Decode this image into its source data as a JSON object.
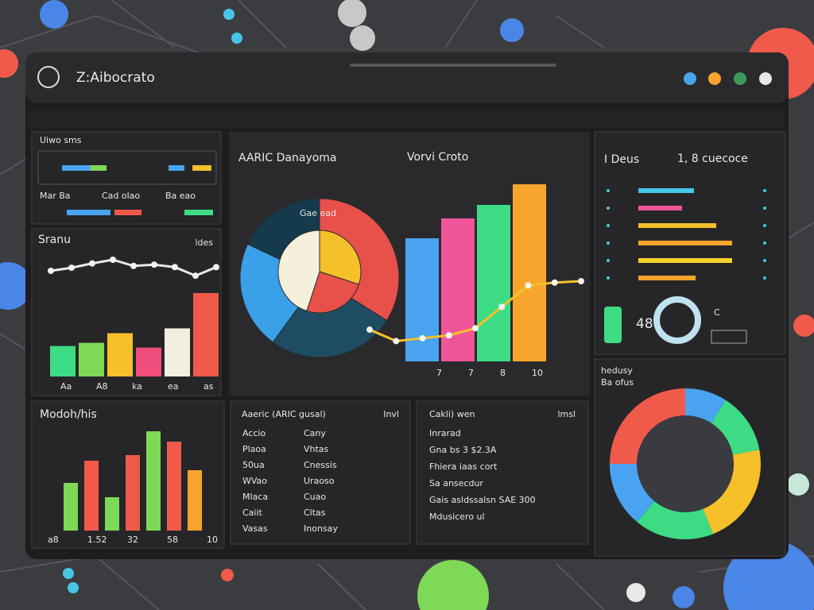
{
  "header": {
    "title": "Z:Aibocrato"
  },
  "top_panel": {
    "title": "Uiwo sms",
    "labels": [
      "Mar Ba",
      "Cad olao",
      "Ba eao"
    ]
  },
  "spark_panel": {
    "title": "Sranu",
    "note": "ldes",
    "line": [
      40,
      45,
      52,
      58,
      48,
      50,
      46,
      32,
      46
    ],
    "bars": [
      38,
      42,
      54,
      36,
      60,
      104
    ],
    "bar_colors": [
      "#3ddc84",
      "#7ed957",
      "#f5c02a",
      "#f04e7a",
      "#f3eee0",
      "#f05a4a"
    ],
    "x_labels": [
      "Aa",
      "A8",
      "ka",
      "ea",
      "as"
    ]
  },
  "main_panel": {
    "title": "AARIC Danayoma",
    "subtitle": "Vorvi Croto",
    "pie_label": "Gae ead",
    "pie": [
      34,
      26,
      22,
      18
    ],
    "pie_colors": [
      "#e8504a",
      "#1e4d63",
      "#3aa0e8",
      "#143a4c"
    ],
    "inner_pie": [
      30,
      25,
      45
    ],
    "inner_colors": [
      "#f5c02a",
      "#e8504a",
      "#f5f0dc"
    ],
    "bars": [
      155,
      180,
      197,
      223
    ],
    "bar_colors": [
      "#4aa3f0",
      "#f0559a",
      "#3ddc84",
      "#f7a52c"
    ],
    "line": [
      30,
      14,
      18,
      22,
      32,
      62,
      92,
      96,
      98
    ],
    "x_labels": [
      "7",
      "7",
      "8",
      "10"
    ]
  },
  "list_panel": {
    "title": "I Deus",
    "subtitle": "1, 8 cuecoce",
    "rows": [
      70,
      55,
      98,
      118,
      118,
      72
    ],
    "row_colors": [
      "#47c6e8",
      "#f0559a",
      "#f5c02a",
      "#f7a52c",
      "#f5d22a",
      "#f7a52c"
    ],
    "kpi": "48",
    "kpi_label": "C"
  },
  "bar_panel": {
    "title": "Modoh/his",
    "bars": [
      60,
      88,
      42,
      95,
      125,
      112,
      76
    ],
    "bar_colors": [
      "#7ed957",
      "#f05a4a",
      "#7ed957",
      "#f05a4a",
      "#7ed957",
      "#f05a4a",
      "#f7a52c"
    ],
    "x_labels": [
      "a8",
      "1.52",
      "32",
      "58",
      "10"
    ]
  },
  "table_panel": {
    "title": "Aaeric (ARIC gusal)",
    "head": "Invl",
    "rows": [
      [
        "Accio",
        "Cany"
      ],
      [
        "Plaoa",
        "Vhtas"
      ],
      [
        "50ua",
        "Cnessis"
      ],
      [
        "WVao",
        "Uraoso"
      ],
      [
        "Mlaca",
        "Cuao"
      ],
      [
        "Caiit",
        "Cltas"
      ],
      [
        "Vasas",
        "Inonsay"
      ]
    ]
  },
  "detail_panel": {
    "title": "Cakli) wen",
    "head": "lmsl",
    "rows": [
      "Inrarad",
      "Gna bs 3 $2.3A",
      "Fhiera iaas cort",
      "Sa ansecdur",
      "Gais asldssalsn SAE 300",
      "Mdusicero ul"
    ]
  },
  "donut_panel": {
    "title": "hedusy",
    "subtitle": "Ba ofus",
    "values": [
      9,
      13,
      22,
      17,
      14,
      25
    ],
    "colors": [
      "#4aa3f0",
      "#3ddc84",
      "#f5c02a",
      "#3ddc84",
      "#4aa3f0",
      "#f05a4a"
    ]
  }
}
